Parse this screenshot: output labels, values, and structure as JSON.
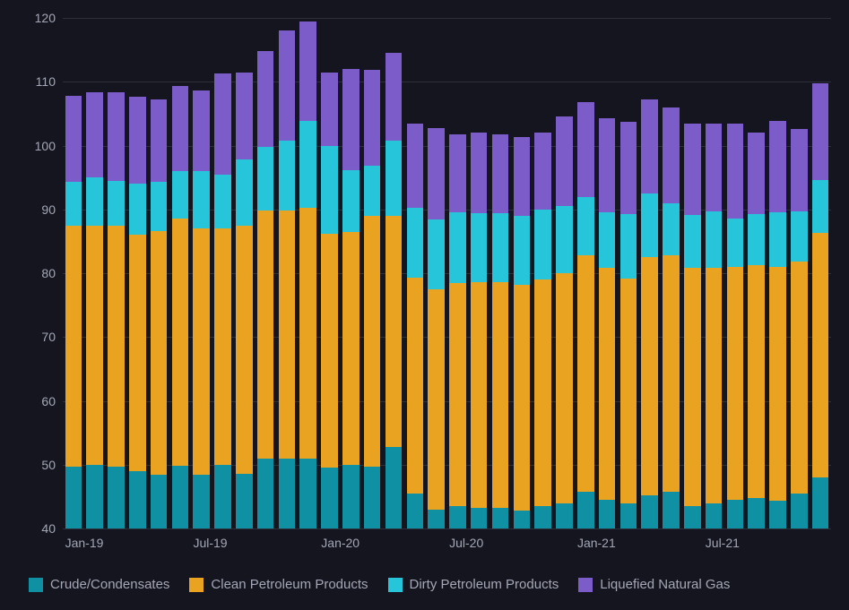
{
  "chart": {
    "type": "stacked-bar",
    "background_color": "#14151f",
    "grid_color": "#2d2f3b",
    "text_color": "#a4a7b5",
    "font_size": 14,
    "bar_width_ratio": 0.78,
    "y_axis": {
      "min": 40,
      "max": 120,
      "tick_step": 10,
      "ticks": [
        40,
        50,
        60,
        70,
        80,
        90,
        100,
        110,
        120
      ]
    },
    "x_axis": {
      "tick_indices": [
        0,
        6,
        12,
        18,
        24,
        30
      ],
      "tick_labels": [
        "Jan-19",
        "Jul-19",
        "Jan-20",
        "Jul-20",
        "Jan-21",
        "Jul-21"
      ]
    },
    "categories": [
      "Jan-19",
      "Feb-19",
      "Mar-19",
      "Apr-19",
      "May-19",
      "Jun-19",
      "Jul-19",
      "Aug-19",
      "Sep-19",
      "Oct-19",
      "Nov-19",
      "Dec-19",
      "Jan-20",
      "Feb-20",
      "Mar-20",
      "Apr-20",
      "May-20",
      "Jun-20",
      "Jul-20",
      "Aug-20",
      "Sep-20",
      "Oct-20",
      "Nov-20",
      "Dec-20",
      "Jan-21",
      "Feb-21",
      "Mar-21",
      "Apr-21",
      "May-21",
      "Jun-21",
      "Jul-21",
      "Aug-21",
      "Sep-21",
      "Oct-21",
      "Nov-21",
      "Dec-21"
    ],
    "series": [
      {
        "key": "crude",
        "label": "Crude/Condensates",
        "color": "#1090a3"
      },
      {
        "key": "clean",
        "label": "Clean Petroleum Products",
        "color": "#eaa221"
      },
      {
        "key": "dirty",
        "label": "Dirty Petroleum Products",
        "color": "#26c5d9"
      },
      {
        "key": "lng",
        "label": "Liquefied Natural Gas",
        "color": "#7b5cc9"
      }
    ],
    "data": {
      "crude": [
        49.7,
        50.0,
        49.7,
        49.0,
        48.4,
        49.8,
        48.4,
        50.0,
        48.5,
        51.0,
        51.0,
        51.0,
        49.5,
        50.0,
        49.7,
        52.8,
        45.5,
        43.0,
        43.5,
        43.2,
        43.2,
        42.8,
        43.5,
        44.0,
        45.8,
        44.5,
        44.0,
        45.2,
        45.8,
        43.5,
        44.0,
        44.5,
        44.8,
        44.4,
        45.5,
        48.0
      ],
      "clean": [
        37.8,
        37.5,
        37.8,
        37.0,
        38.2,
        38.8,
        38.6,
        37.0,
        39.0,
        38.8,
        38.8,
        39.3,
        36.7,
        36.5,
        39.3,
        36.2,
        33.8,
        34.5,
        35.0,
        35.4,
        35.4,
        35.4,
        35.5,
        36.0,
        37.0,
        36.3,
        35.2,
        37.3,
        37.0,
        37.3,
        36.9,
        36.5,
        36.5,
        36.6,
        36.3,
        38.3
      ],
      "dirty": [
        6.8,
        7.5,
        7.0,
        8.0,
        7.7,
        7.4,
        9.0,
        8.5,
        10.3,
        10.0,
        11.0,
        13.5,
        13.8,
        9.7,
        7.8,
        11.8,
        11.0,
        10.9,
        11.0,
        10.8,
        10.8,
        10.8,
        11.0,
        10.5,
        9.2,
        8.8,
        10.0,
        10.0,
        8.2,
        8.3,
        8.8,
        7.5,
        8.0,
        8.5,
        7.9,
        8.3
      ],
      "lng": [
        13.5,
        13.3,
        13.8,
        13.7,
        12.9,
        13.3,
        12.6,
        15.8,
        13.6,
        15.0,
        17.3,
        15.7,
        11.4,
        15.8,
        15.0,
        13.8,
        13.2,
        14.3,
        12.3,
        12.6,
        12.3,
        12.4,
        12.0,
        14.0,
        14.8,
        14.7,
        14.5,
        14.8,
        14.9,
        14.3,
        13.8,
        15.0,
        12.7,
        14.3,
        12.9,
        15.1
      ]
    }
  }
}
